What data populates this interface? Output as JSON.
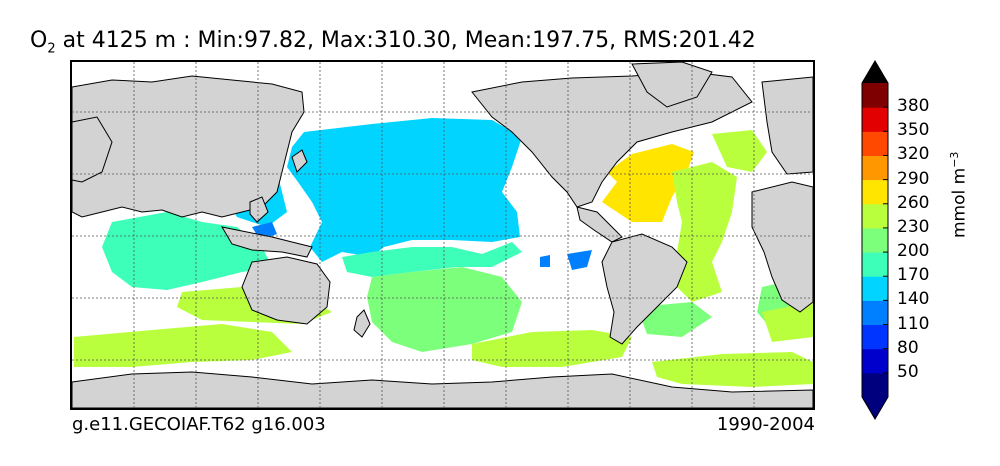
{
  "title": {
    "species": "O",
    "subscript": "2",
    "rest": " at 4125 m : Min:97.82, Max:310.30, Mean:197.75, RMS:201.42"
  },
  "footer": {
    "left": "g.e11.GECOIAF.T62 g16.003",
    "right": "1990-2004"
  },
  "colorbar": {
    "units_main": "mmol m",
    "units_sup": "−3",
    "ticks": [
      "50",
      "80",
      "110",
      "140",
      "170",
      "200",
      "230",
      "260",
      "290",
      "320",
      "350",
      "380"
    ],
    "levels": [
      {
        "color": "#00007f"
      },
      {
        "color": "#0000cc"
      },
      {
        "color": "#0034ff"
      },
      {
        "color": "#0080ff"
      },
      {
        "color": "#00d4ff"
      },
      {
        "color": "#3dffba"
      },
      {
        "color": "#7cff7a"
      },
      {
        "color": "#baff3d"
      },
      {
        "color": "#ffe500"
      },
      {
        "color": "#ff9800"
      },
      {
        "color": "#ff4800"
      },
      {
        "color": "#e30000"
      },
      {
        "color": "#7f0000"
      }
    ],
    "extend_low_color": "#00007f",
    "extend_high_color": "#000000"
  },
  "map": {
    "land_color": "#d3d3d3",
    "ocean_fill_regions": [
      {
        "name": "north-pacific",
        "color": "#00d4ff"
      },
      {
        "name": "north-atlantic-subtropical",
        "color": "#ffe500"
      },
      {
        "name": "east-atlantic",
        "color": "#baff3d"
      },
      {
        "name": "south-atlantic",
        "color": "#baff3d"
      },
      {
        "name": "indian-ocean",
        "color": "#3dffba"
      },
      {
        "name": "south-pacific",
        "color": "#7cff7a"
      },
      {
        "name": "southern-ocean",
        "color": "#baff3d"
      },
      {
        "name": "deep-blue-spots",
        "color": "#0080ff"
      }
    ]
  }
}
